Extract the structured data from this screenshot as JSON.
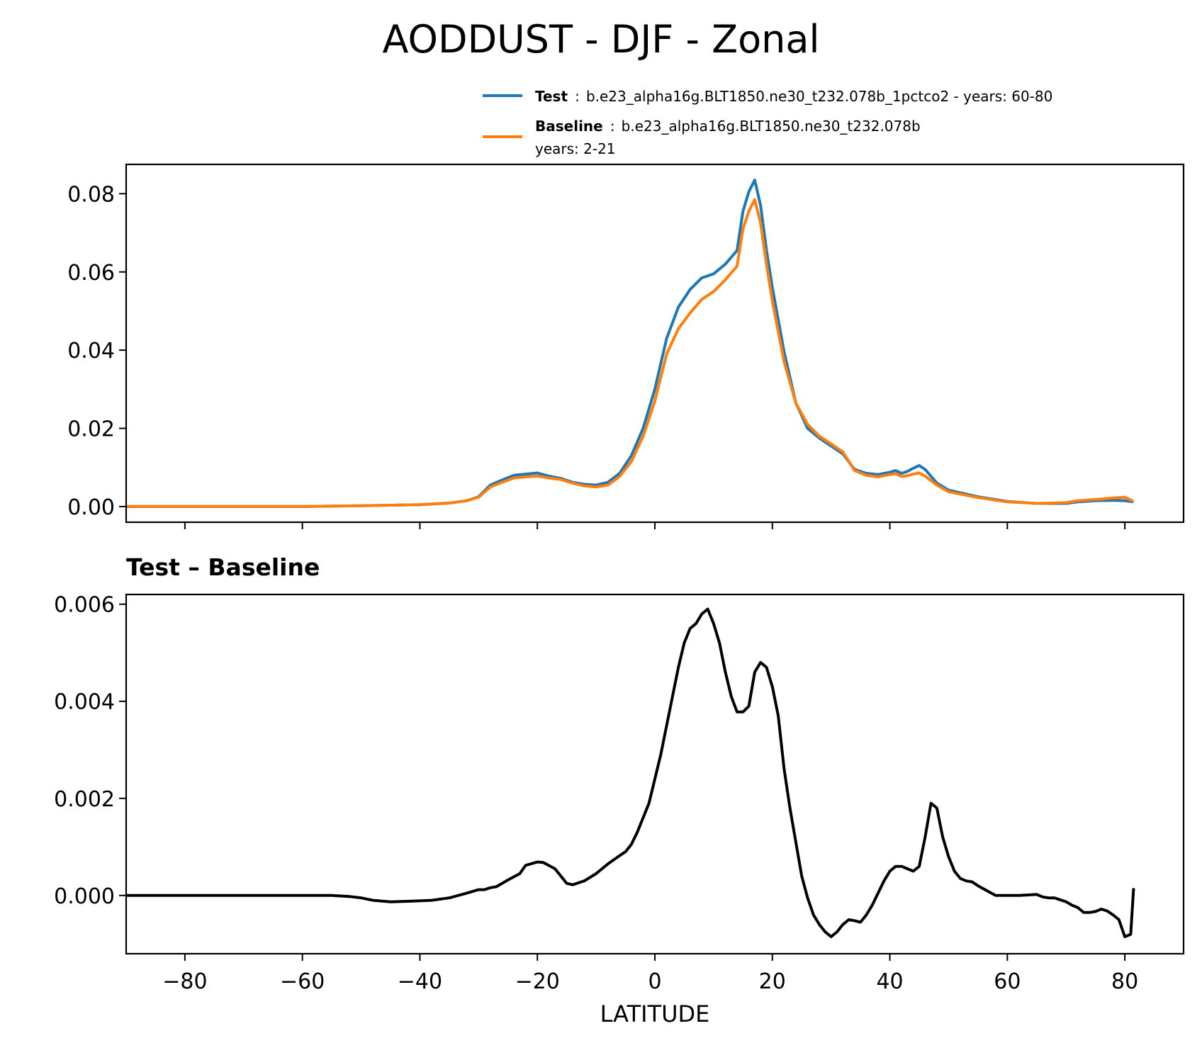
{
  "title": "AODDUST - DJF - Zonal",
  "legend": {
    "test_name": "Test",
    "test_sep": ":",
    "test_desc": "b.e23_alpha16g.BLT1850.ne30_t232.078b_1pctco2 - years: 60-80",
    "baseline_name": "Baseline",
    "baseline_sep": ":",
    "baseline_desc": "b.e23_alpha16g.BLT1850.ne30_t232.078b",
    "baseline_years": "years: 2-21",
    "test_color": "#1f77b4",
    "baseline_color": "#ff7f0e"
  },
  "chart_data": [
    {
      "type": "line",
      "xlabel": "",
      "ylabel": "",
      "xlim": [
        -90,
        90
      ],
      "ylim": [
        -0.004,
        0.0875
      ],
      "yticks": [
        0.0,
        0.02,
        0.04,
        0.06,
        0.08
      ],
      "ytick_labels": [
        "0.00",
        "0.02",
        "0.04",
        "0.06",
        "0.08"
      ],
      "xticks": [
        -80,
        -60,
        -40,
        -20,
        0,
        20,
        40,
        60,
        80
      ],
      "legend_position": "top-right (above plot)",
      "x": [
        -90,
        -80,
        -70,
        -60,
        -50,
        -40,
        -35,
        -32,
        -30,
        -28,
        -26,
        -24,
        -22,
        -20,
        -18,
        -16,
        -14,
        -12,
        -10,
        -8,
        -6,
        -4,
        -2,
        0,
        2,
        4,
        6,
        8,
        10,
        12,
        14,
        15,
        16,
        17,
        18,
        19,
        20,
        22,
        24,
        26,
        28,
        30,
        32,
        34,
        36,
        38,
        40,
        41,
        42,
        43,
        44,
        45,
        46,
        48,
        50,
        55,
        60,
        65,
        70,
        72,
        75,
        78,
        80,
        81.5
      ],
      "series": [
        {
          "name": "Test",
          "color": "#1f77b4",
          "values": [
            0.0,
            0.0,
            0.0,
            0.0,
            0.0002,
            0.0005,
            0.0009,
            0.0015,
            0.0025,
            0.0055,
            0.0068,
            0.008,
            0.0083,
            0.0086,
            0.0078,
            0.0072,
            0.0062,
            0.0057,
            0.0055,
            0.0062,
            0.0085,
            0.013,
            0.02,
            0.03,
            0.043,
            0.051,
            0.0555,
            0.0585,
            0.0595,
            0.062,
            0.0655,
            0.0755,
            0.0805,
            0.0835,
            0.077,
            0.0655,
            0.056,
            0.0395,
            0.0265,
            0.02,
            0.0175,
            0.0155,
            0.0135,
            0.0095,
            0.0085,
            0.0082,
            0.0088,
            0.0092,
            0.0085,
            0.009,
            0.0098,
            0.0105,
            0.0095,
            0.006,
            0.0042,
            0.0025,
            0.0013,
            0.0008,
            0.0008,
            0.0012,
            0.0015,
            0.0016,
            0.0015,
            0.0012
          ]
        },
        {
          "name": "Baseline",
          "color": "#ff7f0e",
          "values": [
            0.0,
            0.0,
            0.0,
            0.0,
            0.0002,
            0.0005,
            0.0009,
            0.0015,
            0.0024,
            0.005,
            0.0062,
            0.0073,
            0.0076,
            0.0078,
            0.0073,
            0.0069,
            0.006,
            0.0053,
            0.005,
            0.0055,
            0.0077,
            0.0115,
            0.018,
            0.027,
            0.039,
            0.0455,
            0.0495,
            0.053,
            0.055,
            0.058,
            0.0615,
            0.071,
            0.0755,
            0.0785,
            0.0725,
            0.062,
            0.0525,
            0.037,
            0.0265,
            0.021,
            0.018,
            0.016,
            0.014,
            0.0092,
            0.008,
            0.0076,
            0.0082,
            0.0084,
            0.0077,
            0.0079,
            0.0083,
            0.0086,
            0.0078,
            0.0055,
            0.0038,
            0.0023,
            0.0012,
            0.0008,
            0.001,
            0.0015,
            0.0018,
            0.0022,
            0.0024,
            0.0013
          ]
        }
      ]
    },
    {
      "type": "line",
      "title": "Test – Baseline",
      "xlabel": "LATITUDE",
      "ylabel": "",
      "xlim": [
        -90,
        90
      ],
      "ylim": [
        -0.0012,
        0.0062
      ],
      "yticks": [
        0.0,
        0.002,
        0.004,
        0.006
      ],
      "ytick_labels": [
        "0.000",
        "0.002",
        "0.004",
        "0.006"
      ],
      "xticks": [
        -80,
        -60,
        -40,
        -20,
        0,
        20,
        40,
        60,
        80
      ],
      "xtick_labels": [
        "−80",
        "−60",
        "−40",
        "−20",
        "0",
        "20",
        "40",
        "60",
        "80"
      ],
      "x": [
        -90,
        -80,
        -70,
        -60,
        -55,
        -52,
        -50,
        -48,
        -45,
        -42,
        -38,
        -35,
        -32,
        -30,
        -29,
        -28,
        -27,
        -25,
        -23,
        -22,
        -20,
        -19,
        -17,
        -15,
        -14,
        -12,
        -10,
        -8,
        -6,
        -5,
        -4,
        -3,
        -2,
        -1,
        0,
        1,
        2,
        3,
        4,
        5,
        6,
        7,
        8,
        9,
        10,
        11,
        12,
        13,
        14,
        15,
        16,
        17,
        18,
        19,
        20,
        21,
        22,
        23,
        24,
        25,
        26,
        27,
        28,
        29,
        30,
        31,
        32,
        33,
        34,
        35,
        36,
        37,
        38,
        39,
        40,
        41,
        42,
        43,
        44,
        45,
        46,
        47,
        48,
        49,
        50,
        51,
        52,
        53,
        54,
        55,
        58,
        62,
        65,
        66,
        67,
        68,
        70,
        71,
        72,
        73,
        74,
        75,
        76,
        77,
        78,
        79,
        80,
        81,
        81.5
      ],
      "series": [
        {
          "name": "Test – Baseline",
          "color": "#000000",
          "values": [
            0.0,
            0.0,
            0.0,
            0.0,
            0.0,
            -2e-05,
            -5e-05,
            -0.0001,
            -0.00013,
            -0.00012,
            -0.0001,
            -5e-05,
            5e-05,
            0.00012,
            0.00012,
            0.00016,
            0.00018,
            0.00032,
            0.00045,
            0.00062,
            0.00069,
            0.00068,
            0.00055,
            0.00025,
            0.00022,
            0.0003,
            0.00045,
            0.00065,
            0.00082,
            0.0009,
            0.00105,
            0.0013,
            0.0016,
            0.0019,
            0.0024,
            0.0029,
            0.0035,
            0.0041,
            0.0047,
            0.0052,
            0.0055,
            0.0056,
            0.0058,
            0.0059,
            0.0056,
            0.0052,
            0.0046,
            0.0041,
            0.00378,
            0.00378,
            0.0039,
            0.0046,
            0.0048,
            0.0047,
            0.0043,
            0.0037,
            0.0026,
            0.0018,
            0.0011,
            0.0004,
            -5e-05,
            -0.0004,
            -0.0006,
            -0.00075,
            -0.00085,
            -0.00075,
            -0.0006,
            -0.0005,
            -0.00052,
            -0.00055,
            -0.0004,
            -0.0002,
            5e-05,
            0.0003,
            0.0005,
            0.0006,
            0.0006,
            0.00055,
            0.0005,
            0.0006,
            0.0012,
            0.0019,
            0.0018,
            0.0012,
            0.0008,
            0.0005,
            0.00035,
            0.0003,
            0.00028,
            0.0002,
            0.0,
            0.0,
            2e-05,
            -3e-05,
            -5e-05,
            -5e-05,
            -0.00013,
            -0.0002,
            -0.00025,
            -0.00035,
            -0.00035,
            -0.00033,
            -0.00028,
            -0.00032,
            -0.0004,
            -0.0005,
            -0.00085,
            -0.0008,
            0.00015
          ]
        }
      ]
    }
  ]
}
